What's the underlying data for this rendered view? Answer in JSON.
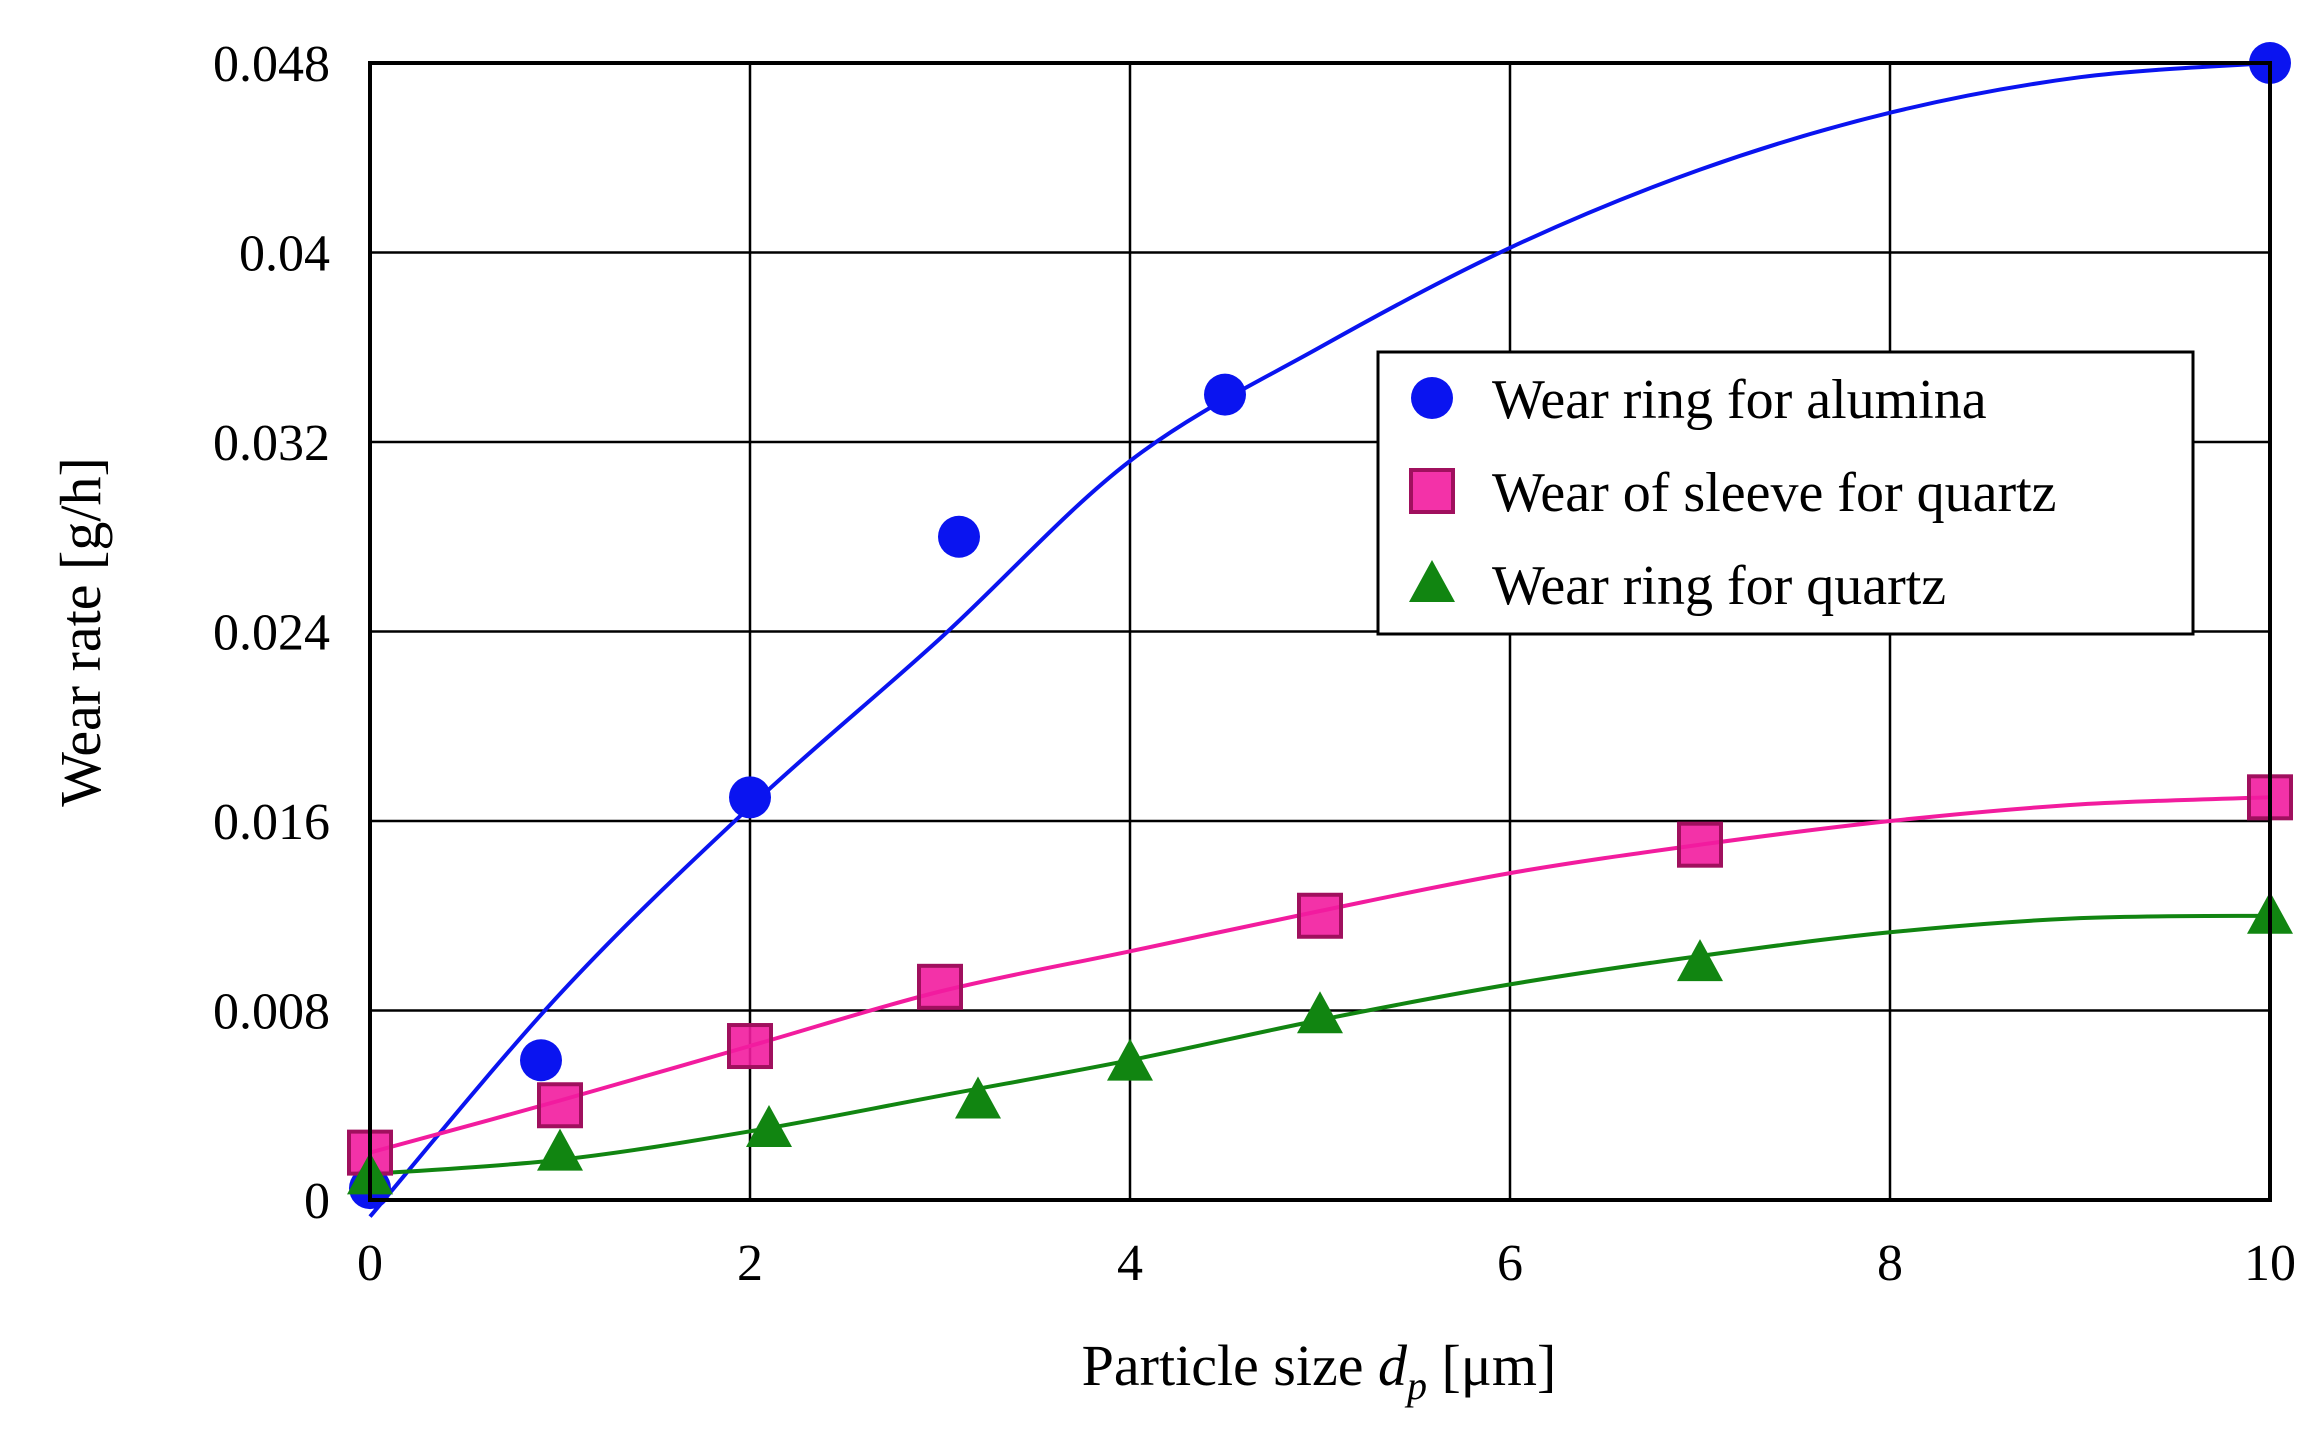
{
  "chart_data": {
    "type": "scatter",
    "title": "",
    "xlabel": "Particle size",
    "xlabel_symbol": "d",
    "xlabel_subscript": "p",
    "xlabel_unit": "[μm]",
    "ylabel": "Wear rate [g/h]",
    "xlim": [
      0,
      10
    ],
    "ylim": [
      0,
      0.048
    ],
    "x_ticks": [
      0,
      2,
      4,
      6,
      8,
      10
    ],
    "x_tick_labels": [
      "0",
      "2",
      "4",
      "6",
      "8",
      "10"
    ],
    "y_ticks": [
      0,
      0.008,
      0.016,
      0.024,
      0.032,
      0.04,
      0.048
    ],
    "y_tick_labels": [
      "0",
      "0.008",
      "0.016",
      "0.024",
      "0.032",
      "0.04",
      "0.048"
    ],
    "grid": true,
    "legend_position": "upper-right-inside",
    "series": [
      {
        "name": "Wear ring for alumina",
        "marker": "circle",
        "color": "#0a14f0",
        "x": [
          0,
          0.9,
          2,
          3.1,
          4.5,
          10
        ],
        "y": [
          0.0005,
          0.0059,
          0.017,
          0.028,
          0.034,
          0.048
        ],
        "fit_x": [
          0,
          1,
          2,
          3,
          4,
          5,
          6,
          7,
          8,
          9,
          10
        ],
        "fit_y": [
          -0.0007,
          0.0087,
          0.0166,
          0.0237,
          0.0312,
          0.036,
          0.0402,
          0.0435,
          0.0459,
          0.0474,
          0.048
        ]
      },
      {
        "name": "Wear of sleeve for quartz",
        "marker": "square",
        "color": "#f21c9e",
        "x": [
          0,
          1,
          2,
          3,
          5,
          7,
          10
        ],
        "y": [
          0.002,
          0.004,
          0.0065,
          0.009,
          0.012,
          0.015,
          0.017
        ],
        "fit_x": [
          0,
          1,
          2,
          3,
          4,
          5,
          6,
          7,
          8,
          9,
          10
        ],
        "fit_y": [
          0.002,
          0.0042,
          0.0065,
          0.0088,
          0.0105,
          0.0122,
          0.0138,
          0.015,
          0.016,
          0.0167,
          0.017
        ]
      },
      {
        "name": "Wear ring for quartz",
        "marker": "triangle",
        "color": "#118511",
        "x": [
          0,
          1,
          2.1,
          3.2,
          4,
          5,
          7,
          10
        ],
        "y": [
          0.001,
          0.002,
          0.003,
          0.0042,
          0.0058,
          0.0078,
          0.01,
          0.012
        ],
        "fit_x": [
          0,
          1,
          2,
          3,
          4,
          5,
          6,
          7,
          8,
          9,
          10
        ],
        "fit_y": [
          0.0011,
          0.0017,
          0.0029,
          0.0044,
          0.0059,
          0.0076,
          0.0091,
          0.0103,
          0.0113,
          0.0119,
          0.012
        ]
      }
    ]
  }
}
